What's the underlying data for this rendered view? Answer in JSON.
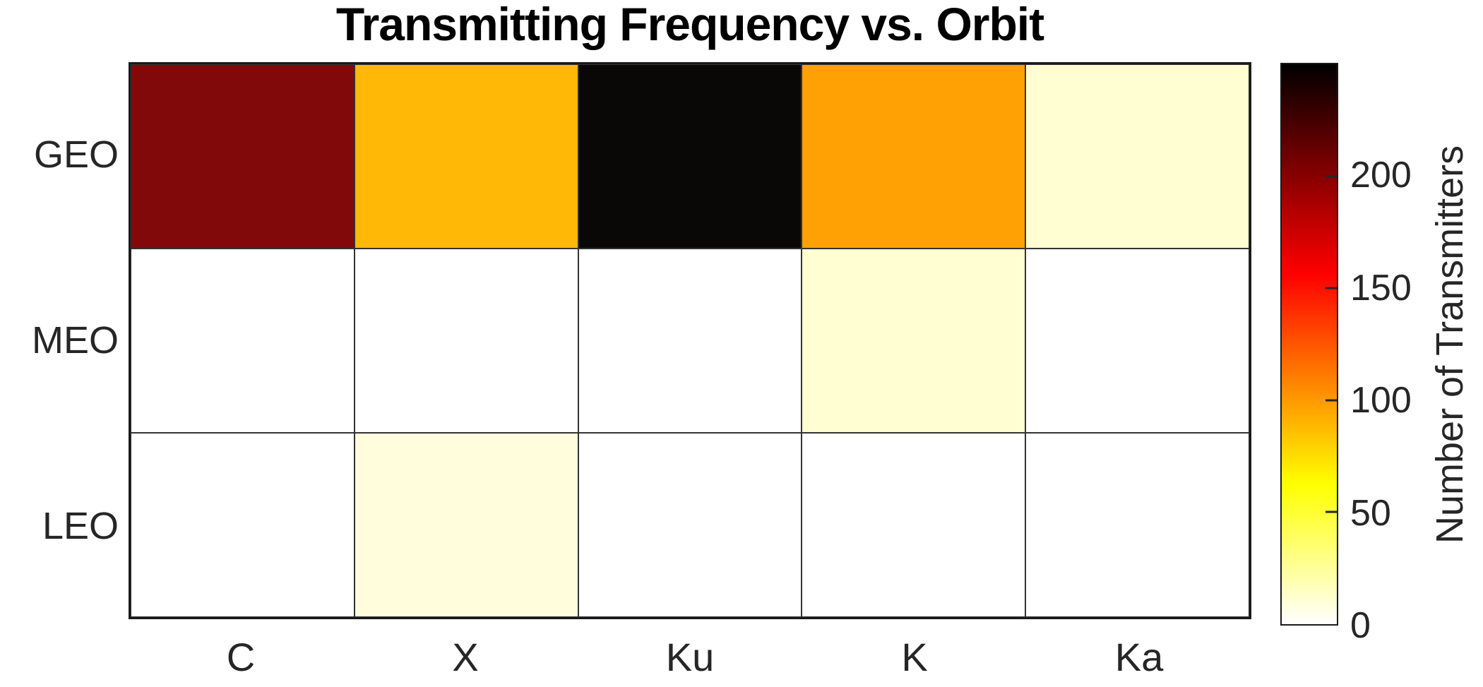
{
  "title": "Transmitting Frequency vs. Orbit",
  "colors": {
    "background": "#ffffff",
    "title_text": "#000000",
    "axis_text": "#262626",
    "axis_border": "#1a1a1a",
    "cell_grid_line": "#333333",
    "colorbar_gradient_bottom_to_top": [
      "#ffffff",
      "#ffff00",
      "#ff0000",
      "#000000"
    ]
  },
  "chart_data": {
    "type": "heatmap",
    "title": "Transmitting Frequency vs. Orbit",
    "xlabel": "",
    "ylabel": "",
    "x_categories": [
      "C",
      "X",
      "Ku",
      "K",
      "Ka"
    ],
    "y_categories": [
      "GEO",
      "MEO",
      "LEO"
    ],
    "values": [
      [
        200,
        89,
        249,
        97,
        11
      ],
      [
        0,
        0,
        0,
        11,
        0
      ],
      [
        0,
        9,
        0,
        0,
        0
      ]
    ],
    "cell_colors": [
      [
        "#820909",
        "#ffb806",
        "#0a0806",
        "#ffa004",
        "#fffdd1"
      ],
      [
        "#ffffff",
        "#ffffff",
        "#ffffff",
        "#fffdd1",
        "#ffffff"
      ],
      [
        "#ffffff",
        "#fffddc",
        "#ffffff",
        "#ffffff",
        "#ffffff"
      ]
    ],
    "grid": true,
    "legend_position": "right-colorbar",
    "colorbar": {
      "label": "Number of Transmitters",
      "ticks": [
        0,
        50,
        100,
        150,
        200
      ],
      "range": [
        0,
        250
      ],
      "colormap": "hot-reversed (white=0 to black=max)"
    }
  }
}
